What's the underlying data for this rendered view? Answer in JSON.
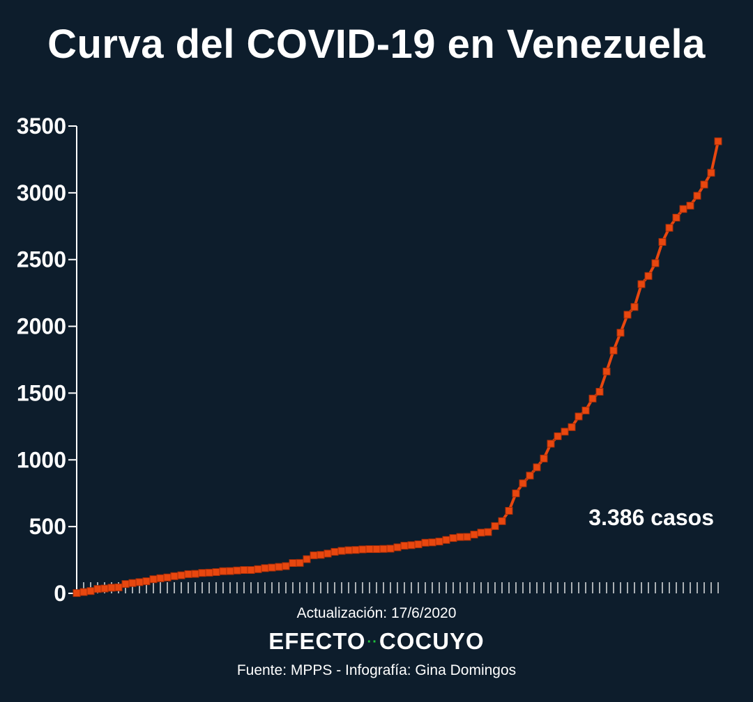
{
  "chart_data": {
    "type": "line",
    "title": "Curva del COVID-19 en Venezuela",
    "ylim": [
      0,
      3500
    ],
    "yticks": [
      "0",
      "500",
      "1000",
      "1500",
      "2000",
      "2500",
      "3000",
      "3500"
    ],
    "y": [
      2,
      10,
      17,
      33,
      36,
      42,
      45,
      70,
      77,
      84,
      91,
      106,
      113,
      119,
      129,
      135,
      144,
      146,
      153,
      155,
      159,
      166,
      167,
      171,
      175,
      175,
      181,
      189,
      193,
      198,
      204,
      227,
      228,
      256,
      285,
      288,
      298,
      311,
      318,
      323,
      325,
      329,
      331,
      331,
      333,
      335,
      345,
      357,
      361,
      367,
      379,
      382,
      388,
      400,
      414,
      422,
      423,
      440,
      455,
      459,
      504,
      541,
      618,
      749,
      824,
      882,
      944,
      1010,
      1121,
      1177,
      1211,
      1245,
      1325,
      1370,
      1459,
      1510,
      1662,
      1819,
      1952,
      2087,
      2145,
      2316,
      2377,
      2473,
      2632,
      2738,
      2814,
      2879,
      2904,
      2978,
      3062,
      3150,
      3386
    ],
    "annotation": "3.386 casos",
    "color": "#e8470f",
    "grid": false
  },
  "footer": {
    "update": "Actualización: 17/6/2020",
    "logo_left": "EFECTO",
    "logo_dots": "··",
    "logo_right": "COCUYO",
    "source": "Fuente: MPPS - Infografía: Gina Domingos"
  },
  "colors": {
    "background": "#0d1d2c",
    "line": "#e8470f",
    "logo_accent": "#1ec33c"
  }
}
